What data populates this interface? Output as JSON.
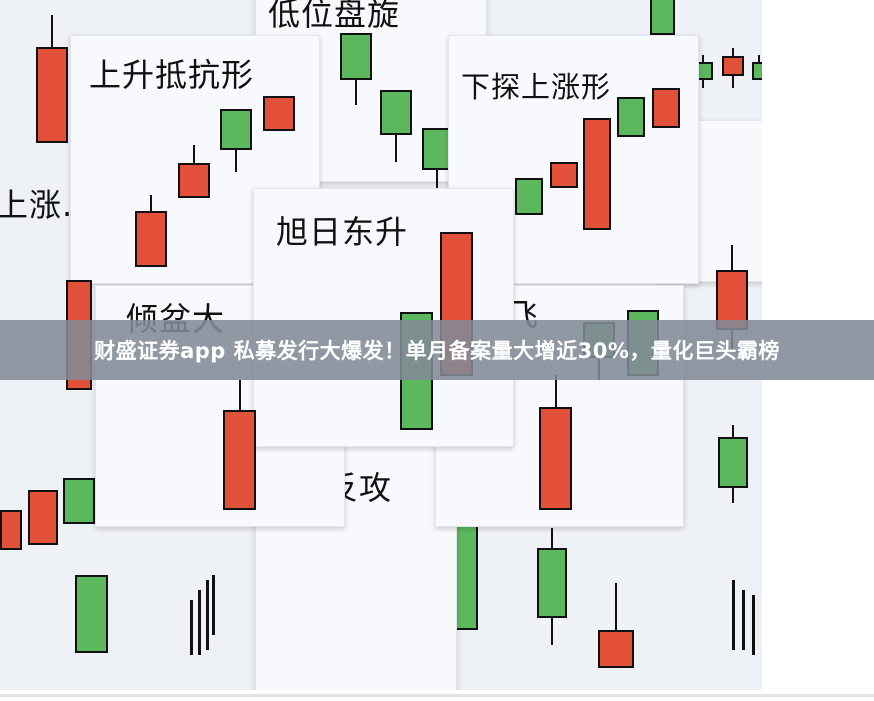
{
  "image": {
    "cards": [
      {
        "id": "low-hover",
        "title": "低位盘旋"
      },
      {
        "id": "rising-resist",
        "title": "上升抵抗形"
      },
      {
        "id": "dip-rise",
        "title": "下探上涨形"
      },
      {
        "id": "sunrise",
        "title": "旭日东升"
      },
      {
        "id": "downpour",
        "title": "倾盆大"
      },
      {
        "id": "fly",
        "title": "飞"
      },
      {
        "id": "counter",
        "title": "反攻"
      },
      {
        "id": "rise-left",
        "title": "上涨."
      }
    ],
    "colors": {
      "bull": "#e2503a",
      "bear": "#5cb85c",
      "outline": "#111111"
    }
  },
  "banner": {
    "headline": "财盛证券app 私募发行大爆发！单月备案量大增近30%，量化巨头霸榜"
  }
}
